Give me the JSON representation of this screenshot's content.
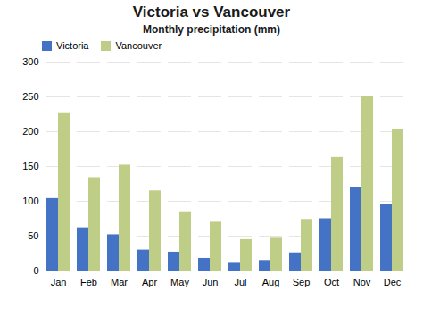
{
  "chart_data": {
    "type": "bar",
    "title": "Victoria vs Vancouver",
    "subtitle": "Monthly precipitation (mm)",
    "categories": [
      "Jan",
      "Feb",
      "Mar",
      "Apr",
      "May",
      "Jun",
      "Jul",
      "Aug",
      "Sep",
      "Oct",
      "Nov",
      "Dec"
    ],
    "series": [
      {
        "name": "Victoria",
        "color": "#4472C4",
        "values": [
          104,
          62,
          52,
          30,
          27,
          18,
          11,
          15,
          26,
          75,
          120,
          95
        ]
      },
      {
        "name": "Vancouver",
        "color": "#BFCE87",
        "values": [
          226,
          134,
          152,
          115,
          85,
          70,
          45,
          47,
          74,
          163,
          251,
          203
        ]
      }
    ],
    "ylim": [
      0,
      300
    ],
    "yticks": [
      0,
      50,
      100,
      150,
      200,
      250,
      300
    ],
    "grid": true,
    "legend": "upper left"
  }
}
